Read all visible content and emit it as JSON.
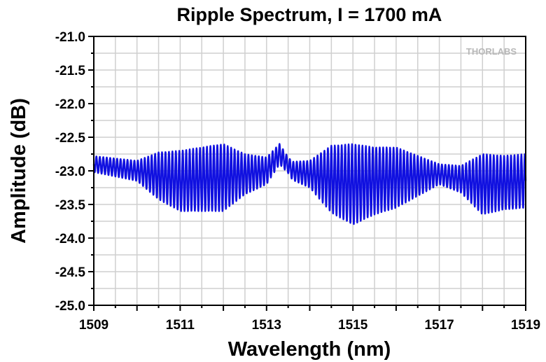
{
  "chart_data": {
    "type": "line",
    "title": "Ripple Spectrum, I = 1700 mA",
    "xlabel": "Wavelength (nm)",
    "ylabel": "Amplitude (dB)",
    "xlim": [
      1509,
      1519
    ],
    "ylim": [
      -25.0,
      -21.0
    ],
    "x_ticks": [
      1509,
      1511,
      1513,
      1515,
      1517,
      1519
    ],
    "y_ticks": [
      "-21.0",
      "-21.5",
      "-22.0",
      "-22.5",
      "-23.0",
      "-23.5",
      "-24.0",
      "-24.5",
      "-25.0"
    ],
    "grid": true,
    "watermark": "THORLABS",
    "series": [
      {
        "color": "#1010e0",
        "ripple_period_nm": 0.08,
        "baseline_points": [
          [
            1509.0,
            -22.9
          ],
          [
            1510.0,
            -23.0
          ],
          [
            1511.0,
            -23.15
          ],
          [
            1512.0,
            -23.1
          ],
          [
            1513.0,
            -23.0
          ],
          [
            1513.3,
            -22.75
          ],
          [
            1513.6,
            -23.0
          ],
          [
            1514.0,
            -23.05
          ],
          [
            1515.0,
            -23.2
          ],
          [
            1516.0,
            -23.1
          ],
          [
            1517.0,
            -23.05
          ],
          [
            1518.0,
            -23.2
          ],
          [
            1519.0,
            -23.15
          ]
        ],
        "ripple_envelope_dB": [
          [
            1509.0,
            0.12
          ],
          [
            1510.0,
            0.15
          ],
          [
            1510.5,
            0.35
          ],
          [
            1511.0,
            0.45
          ],
          [
            1512.0,
            0.5
          ],
          [
            1512.5,
            0.3
          ],
          [
            1513.0,
            0.2
          ],
          [
            1513.5,
            0.12
          ],
          [
            1514.0,
            0.2
          ],
          [
            1514.5,
            0.5
          ],
          [
            1515.0,
            0.6
          ],
          [
            1515.5,
            0.5
          ],
          [
            1516.0,
            0.45
          ],
          [
            1516.5,
            0.3
          ],
          [
            1517.0,
            0.15
          ],
          [
            1517.5,
            0.2
          ],
          [
            1518.0,
            0.45
          ],
          [
            1518.5,
            0.4
          ],
          [
            1519.0,
            0.4
          ]
        ]
      }
    ]
  }
}
